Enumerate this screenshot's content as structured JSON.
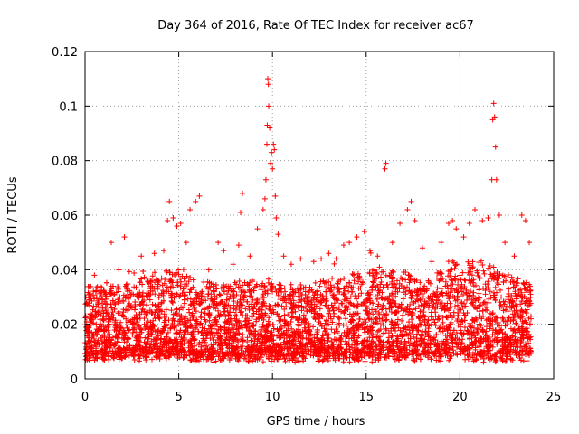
{
  "chart_data": {
    "type": "scatter",
    "title": "Day 364 of 2016, Rate Of TEC Index for receiver ac67",
    "xlabel": "GPS time / hours",
    "ylabel": "ROTI / TECUs",
    "xlim": [
      0,
      25
    ],
    "ylim": [
      0,
      0.12
    ],
    "x_ticks": [
      0,
      5,
      10,
      15,
      20,
      25
    ],
    "x_tick_labels": [
      "0",
      "5",
      "10",
      "15",
      "20",
      "25"
    ],
    "y_ticks": [
      0,
      0.02,
      0.04,
      0.06,
      0.08,
      0.1,
      0.12
    ],
    "y_tick_labels": [
      "0",
      "0.02",
      "0.04",
      "0.06",
      "0.08",
      "0.1",
      "0.12"
    ],
    "grid": true,
    "marker": "+",
    "color": "#ff0000",
    "envelope_hours": [
      0,
      1,
      2,
      3,
      4,
      5,
      6,
      7,
      8,
      9,
      10,
      11,
      12,
      13,
      14,
      15,
      16,
      17,
      18,
      19,
      20,
      21,
      22,
      23,
      23.8
    ],
    "typical_upper_roti": [
      0.034,
      0.034,
      0.034,
      0.037,
      0.04,
      0.04,
      0.037,
      0.035,
      0.036,
      0.036,
      0.035,
      0.034,
      0.035,
      0.037,
      0.038,
      0.04,
      0.04,
      0.04,
      0.036,
      0.04,
      0.043,
      0.045,
      0.04,
      0.037,
      0.035
    ],
    "typical_lower_roti": 0.006,
    "points": [
      [
        0.5,
        0.038
      ],
      [
        1.4,
        0.05
      ],
      [
        1.8,
        0.04
      ],
      [
        2.1,
        0.052
      ],
      [
        3.0,
        0.045
      ],
      [
        3.7,
        0.046
      ],
      [
        4.2,
        0.047
      ],
      [
        4.4,
        0.058
      ],
      [
        4.5,
        0.065
      ],
      [
        4.7,
        0.059
      ],
      [
        4.9,
        0.056
      ],
      [
        5.1,
        0.057
      ],
      [
        5.4,
        0.05
      ],
      [
        5.6,
        0.062
      ],
      [
        5.9,
        0.065
      ],
      [
        6.1,
        0.067
      ],
      [
        6.6,
        0.04
      ],
      [
        7.1,
        0.05
      ],
      [
        7.4,
        0.047
      ],
      [
        7.9,
        0.042
      ],
      [
        8.2,
        0.049
      ],
      [
        8.3,
        0.061
      ],
      [
        8.4,
        0.068
      ],
      [
        8.8,
        0.045
      ],
      [
        9.2,
        0.055
      ],
      [
        9.5,
        0.062
      ],
      [
        9.6,
        0.066
      ],
      [
        9.65,
        0.073
      ],
      [
        9.7,
        0.086
      ],
      [
        9.72,
        0.093
      ],
      [
        9.75,
        0.11
      ],
      [
        9.78,
        0.108
      ],
      [
        9.8,
        0.1
      ],
      [
        9.85,
        0.092
      ],
      [
        9.9,
        0.079
      ],
      [
        9.95,
        0.083
      ],
      [
        10.0,
        0.077
      ],
      [
        10.05,
        0.086
      ],
      [
        10.1,
        0.084
      ],
      [
        10.15,
        0.067
      ],
      [
        10.2,
        0.059
      ],
      [
        10.3,
        0.053
      ],
      [
        10.6,
        0.045
      ],
      [
        11.0,
        0.042
      ],
      [
        11.5,
        0.044
      ],
      [
        12.2,
        0.043
      ],
      [
        12.6,
        0.044
      ],
      [
        13.0,
        0.046
      ],
      [
        13.4,
        0.044
      ],
      [
        13.8,
        0.049
      ],
      [
        14.1,
        0.05
      ],
      [
        14.5,
        0.052
      ],
      [
        14.9,
        0.054
      ],
      [
        15.2,
        0.047
      ],
      [
        15.6,
        0.045
      ],
      [
        16.0,
        0.077
      ],
      [
        16.05,
        0.079
      ],
      [
        16.4,
        0.05
      ],
      [
        16.8,
        0.057
      ],
      [
        17.2,
        0.062
      ],
      [
        17.4,
        0.065
      ],
      [
        17.6,
        0.058
      ],
      [
        18.0,
        0.048
      ],
      [
        18.5,
        0.043
      ],
      [
        19.0,
        0.05
      ],
      [
        19.4,
        0.057
      ],
      [
        19.6,
        0.058
      ],
      [
        19.8,
        0.055
      ],
      [
        20.2,
        0.052
      ],
      [
        20.5,
        0.057
      ],
      [
        20.8,
        0.062
      ],
      [
        21.2,
        0.058
      ],
      [
        21.5,
        0.059
      ],
      [
        21.7,
        0.073
      ],
      [
        21.75,
        0.095
      ],
      [
        21.8,
        0.101
      ],
      [
        21.85,
        0.096
      ],
      [
        21.9,
        0.085
      ],
      [
        21.95,
        0.073
      ],
      [
        22.1,
        0.06
      ],
      [
        22.4,
        0.05
      ],
      [
        22.9,
        0.045
      ],
      [
        23.3,
        0.06
      ],
      [
        23.5,
        0.058
      ],
      [
        23.7,
        0.05
      ]
    ]
  }
}
